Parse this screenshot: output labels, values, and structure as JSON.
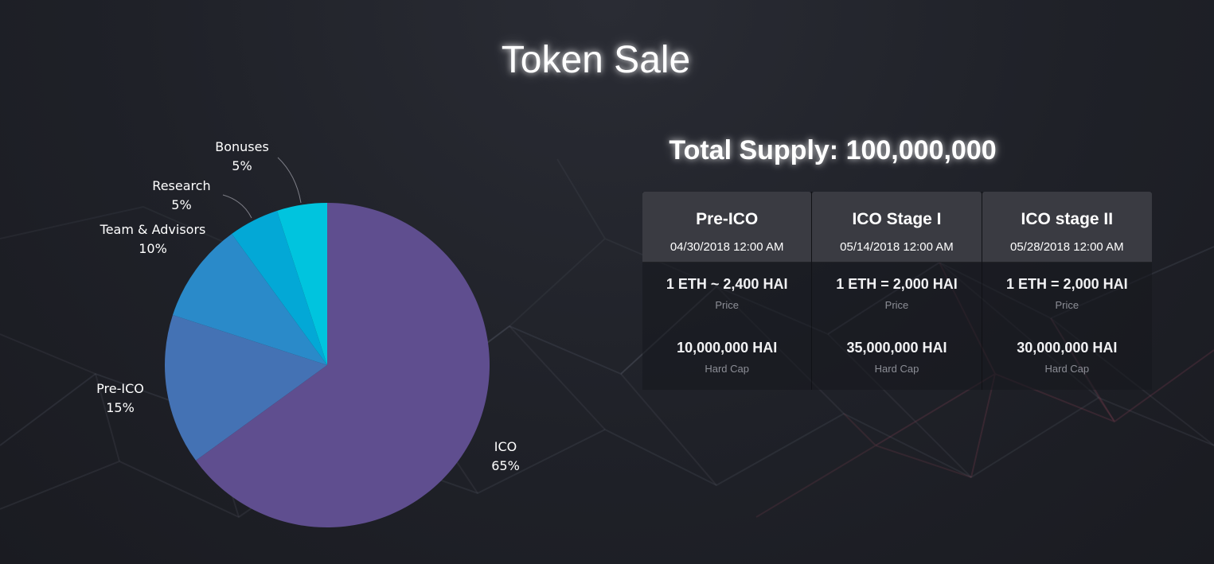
{
  "page": {
    "title": "Token Sale",
    "supply_label": "Total Supply: 100,000,000"
  },
  "colors": {
    "background": "#1f2128",
    "ico": "#5f4e8f",
    "pre_ico": "#4472b4",
    "team": "#2a8ac9",
    "research": "#03a8d6",
    "bonuses": "#00c4de"
  },
  "chart_data": {
    "type": "pie",
    "title": "",
    "slices": [
      {
        "label": "ICO",
        "pct_label": "65%",
        "value": 65,
        "color": "#5f4e8f"
      },
      {
        "label": "Pre-ICO",
        "pct_label": "15%",
        "value": 15,
        "color": "#4472b4"
      },
      {
        "label": "Team & Advisors",
        "pct_label": "10%",
        "value": 10,
        "color": "#2a8ac9"
      },
      {
        "label": "Research",
        "pct_label": "5%",
        "value": 5,
        "color": "#03a8d6"
      },
      {
        "label": "Bonuses",
        "pct_label": "5%",
        "value": 5,
        "color": "#00c4de"
      }
    ]
  },
  "stages": [
    {
      "name": "Pre-ICO",
      "date": "04/30/2018 12:00 AM",
      "price": "1 ETH ~ 2,400 HAI",
      "price_caption": "Price",
      "cap": "10,000,000 HAI",
      "cap_caption": "Hard Cap"
    },
    {
      "name": "ICO Stage I",
      "date": "05/14/2018 12:00 AM",
      "price": "1 ETH = 2,000 HAI",
      "price_caption": "Price",
      "cap": "35,000,000 HAI",
      "cap_caption": "Hard Cap"
    },
    {
      "name": "ICO stage II",
      "date": "05/28/2018 12:00 AM",
      "price": "1 ETH = 2,000 HAI",
      "price_caption": "Price",
      "cap": "30,000,000 HAI",
      "cap_caption": "Hard Cap"
    }
  ]
}
